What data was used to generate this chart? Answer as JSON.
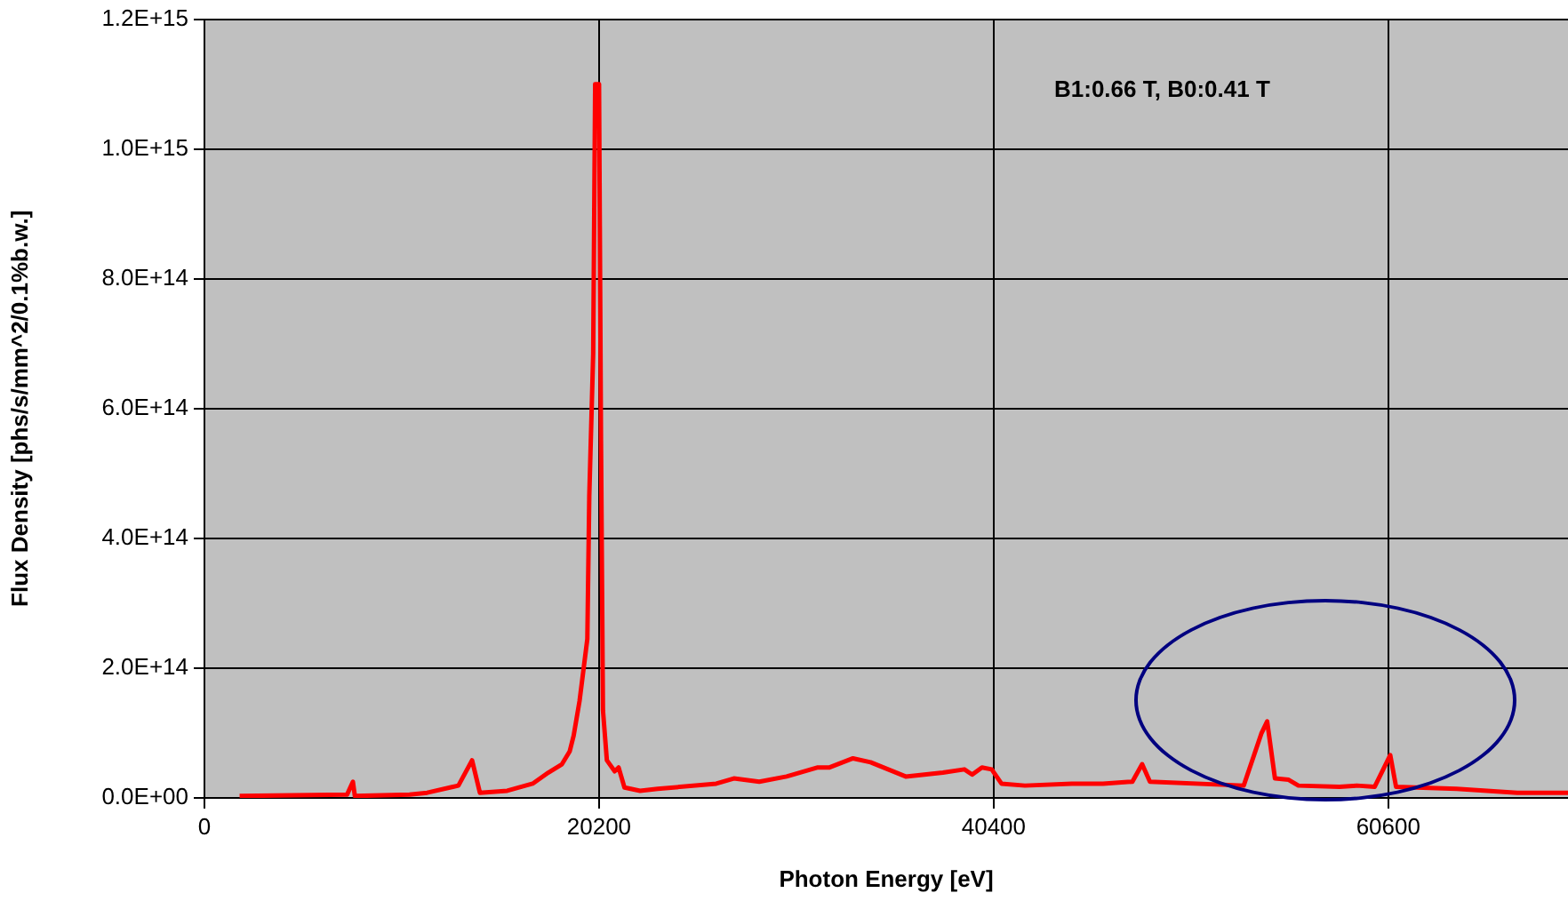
{
  "chart_data": {
    "type": "line",
    "xlabel": "Photon Energy [eV]",
    "ylabel": "Flux Density [phs/s/mm^2/0.1%b.w.]",
    "annotations": [
      "B1:0.66 T, B0:0.41 T"
    ],
    "x": [
      1800,
      7300,
      7600,
      7700,
      10500,
      11400,
      13000,
      13700,
      14100,
      15500,
      16800,
      17600,
      18300,
      18700,
      18900,
      19200,
      19600,
      19700,
      19900,
      20000,
      20200,
      20300,
      20400,
      20600,
      21000,
      21200,
      21500,
      22300,
      23200,
      26200,
      27100,
      28400,
      29800,
      31400,
      32000,
      33200,
      34100,
      35900,
      37800,
      38900,
      39300,
      39800,
      40300,
      40800,
      42000,
      44400,
      46000,
      47500,
      48000,
      48400,
      53200,
      54100,
      54400,
      54800,
      55500,
      56000,
      58100,
      59000,
      59900,
      60700,
      61000,
      64100,
      67200,
      69800
    ],
    "series": [
      {
        "color": "#ff0000",
        "values": [
          3000000000000.0,
          5000000000000.0,
          25000000000000.0,
          3000000000000.0,
          5000000000000.0,
          8000000000000.0,
          19000000000000.0,
          58000000000000.0,
          8000000000000.0,
          11000000000000.0,
          22000000000000.0,
          39000000000000.0,
          52000000000000.0,
          72000000000000.0,
          96000000000000.0,
          149000000000000.0,
          245000000000000.0,
          465000000000000.0,
          685000000000000.0,
          1100000000000000.0,
          1100000000000000.0,
          550000000000000.0,
          135000000000000.0,
          58000000000000.0,
          41000000000000.0,
          47000000000000.0,
          16000000000000.0,
          11000000000000.0,
          14000000000000.0,
          22000000000000.0,
          30000000000000.0,
          25000000000000.0,
          33000000000000.0,
          47000000000000.0,
          47000000000000.0,
          61000000000000.0,
          55000000000000.0,
          33000000000000.0,
          39000000000000.0,
          44000000000000.0,
          36000000000000.0,
          47000000000000.0,
          44000000000000.0,
          22000000000000.0,
          19000000000000.0,
          22000000000000.0,
          22000000000000.0,
          25000000000000.0,
          52000000000000.0,
          25000000000000.0,
          19000000000000.0,
          99000000000000.0,
          118000000000000.0,
          30000000000000.0,
          28000000000000.0,
          19000000000000.0,
          17000000000000.0,
          19000000000000.0,
          17000000000000.0,
          66000000000000.0,
          17000000000000.0,
          14000000000000.0,
          8000000000000.0,
          8000000000000.0
        ]
      }
    ],
    "xlim": [
      0,
      69800
    ],
    "xticks": [
      0,
      20200,
      40400,
      60600
    ],
    "ylim": [
      0,
      1200000000000000.0
    ],
    "yticks": [
      {
        "value": 0,
        "label": "0.0E+00"
      },
      {
        "value": 200000000000000.0,
        "label": "2.0E+14"
      },
      {
        "value": 400000000000000.0,
        "label": "4.0E+14"
      },
      {
        "value": 600000000000000.0,
        "label": "6.0E+14"
      },
      {
        "value": 800000000000000.0,
        "label": "8.0E+14"
      },
      {
        "value": 1000000000000000.0,
        "label": "1.0E+15"
      },
      {
        "value": 1200000000000000.0,
        "label": "1.2E+15"
      }
    ],
    "grid": true,
    "legend": false,
    "marker": "none",
    "line_style": "solid"
  }
}
